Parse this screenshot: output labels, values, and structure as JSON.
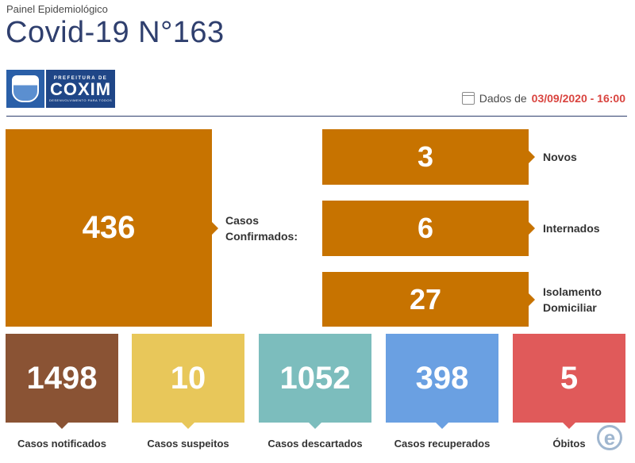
{
  "header": {
    "subtitle": "Painel Epidemiológico",
    "title": "Covid-19 N°163",
    "date_prefix": "Dados de",
    "date_value": "03/09/2020 - 16:00"
  },
  "logo": {
    "top_text": "PREFEITURA DE",
    "city": "COXIM",
    "tagline": "DESENVOLVIMENTO PARA TODOS"
  },
  "confirmed": {
    "value": "436",
    "label_line1": "Casos",
    "label_line2": "Confirmados:"
  },
  "breakdown": [
    {
      "value": "3",
      "label": "Novos"
    },
    {
      "value": "6",
      "label": "Internados"
    },
    {
      "value": "27",
      "label_line1": "Isolamento",
      "label_line2": "Domiciliar"
    }
  ],
  "tiles": [
    {
      "value": "1498",
      "label": "Casos notificados",
      "color": "#8a5334"
    },
    {
      "value": "10",
      "label": "Casos suspeitos",
      "color": "#e8c75a"
    },
    {
      "value": "1052",
      "label": "Casos descartados",
      "color": "#7cbdbd"
    },
    {
      "value": "398",
      "label": "Casos recuperados",
      "color": "#6aa0e2"
    },
    {
      "value": "5",
      "label": "Óbitos",
      "color": "#e05a5a"
    }
  ],
  "colors": {
    "accent": "#c77300",
    "title": "#2f3f6e",
    "date": "#d9443f"
  },
  "icons": {
    "calendar": "calendar-icon",
    "watermark": "e-logo-icon"
  }
}
